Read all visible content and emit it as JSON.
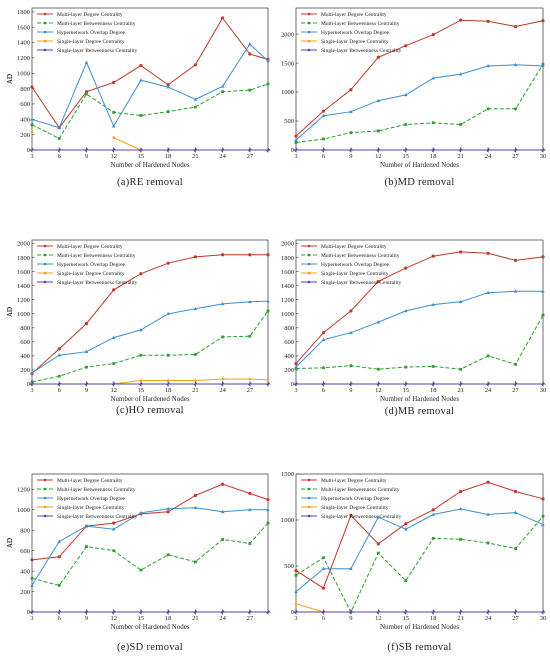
{
  "legend_names": [
    "Multi-layer Degree Centrality",
    "Multi-layer Betweenness Centrality",
    "Hypernetwork Overlap Degree",
    "Single-layer Degree Centrality",
    "Single-layer Betweenness Centrality"
  ],
  "series_colors": [
    "#c0392b",
    "#2ca02c",
    "#3a8fd1",
    "#f0a30a",
    "#5b3fb5"
  ],
  "chart_data": [
    {
      "type": "line",
      "caption": "(a)RE removal",
      "xlabel": "Number of Hardened Nodes",
      "ylabel": "AD",
      "xlim": [
        3,
        29
      ],
      "ylim": [
        0,
        1850
      ],
      "x_ticks": [
        3,
        6,
        9,
        12,
        15,
        18,
        21,
        24,
        27
      ],
      "y_ticks": [
        0,
        200,
        400,
        600,
        800,
        1000,
        1200,
        1400,
        1600,
        1800
      ],
      "x": [
        3,
        6,
        9,
        12,
        15,
        18,
        21,
        24,
        27,
        29
      ],
      "series": [
        {
          "name": "Multi-layer Degree Centrality",
          "values": [
            820,
            290,
            760,
            880,
            1100,
            850,
            1110,
            1720,
            1250,
            1180
          ]
        },
        {
          "name": "Multi-layer Betweenness Centrality",
          "values": [
            330,
            150,
            730,
            490,
            450,
            500,
            560,
            760,
            780,
            860
          ]
        },
        {
          "name": "Hypernetwork Overlap Degree",
          "values": [
            400,
            290,
            1140,
            310,
            910,
            820,
            660,
            830,
            1380,
            1160
          ]
        },
        {
          "name": "Single-layer Degree Centrality",
          "values": [
            230,
            null,
            null,
            160,
            0,
            0,
            0,
            0,
            0,
            0
          ]
        },
        {
          "name": "Single-layer Betweenness Centrality",
          "values": [
            0,
            0,
            0,
            0,
            0,
            0,
            0,
            0,
            0,
            0
          ]
        }
      ]
    },
    {
      "type": "line",
      "caption": "(b)MD removal",
      "xlabel": "Number of Hardened Nodes",
      "ylabel": "AD",
      "xlim": [
        3,
        30
      ],
      "ylim": [
        0,
        2450
      ],
      "x_ticks": [
        3,
        6,
        9,
        12,
        15,
        18,
        21,
        24,
        27,
        30
      ],
      "y_ticks": [
        0,
        500,
        1000,
        1500,
        2000
      ],
      "x": [
        3,
        6,
        9,
        12,
        15,
        18,
        21,
        24,
        27,
        30
      ],
      "series": [
        {
          "name": "Multi-layer Degree Centrality",
          "values": [
            240,
            670,
            1040,
            1600,
            1800,
            1990,
            2240,
            2220,
            2130,
            2230
          ]
        },
        {
          "name": "Multi-layer Betweenness Centrality",
          "values": [
            130,
            190,
            300,
            330,
            440,
            470,
            440,
            710,
            710,
            1480
          ]
        },
        {
          "name": "Hypernetwork Overlap Degree",
          "values": [
            170,
            590,
            660,
            850,
            950,
            1240,
            1310,
            1450,
            1470,
            1450
          ]
        },
        {
          "name": "Single-layer Degree Centrality",
          "values": [
            0,
            0,
            0,
            0,
            0,
            0,
            0,
            0,
            0,
            0
          ]
        },
        {
          "name": "Single-layer Betweenness Centrality",
          "values": [
            0,
            0,
            0,
            0,
            0,
            0,
            0,
            0,
            0,
            0
          ]
        }
      ]
    },
    {
      "type": "line",
      "caption": "(c)HO removal",
      "xlabel": "Number of Hardened Nodes",
      "ylabel": "AD",
      "xlim": [
        3,
        29
      ],
      "ylim": [
        0,
        2050
      ],
      "x_ticks": [
        3,
        6,
        9,
        12,
        15,
        18,
        21,
        24,
        27
      ],
      "y_ticks": [
        0,
        200,
        400,
        600,
        800,
        1000,
        1200,
        1400,
        1600,
        1800,
        2000
      ],
      "x": [
        3,
        6,
        9,
        12,
        15,
        18,
        21,
        24,
        27,
        29
      ],
      "series": [
        {
          "name": "Multi-layer Degree Centrality",
          "values": [
            150,
            500,
            860,
            1340,
            1570,
            1720,
            1810,
            1840,
            1840,
            1840
          ]
        },
        {
          "name": "Multi-layer Betweenness Centrality",
          "values": [
            30,
            110,
            240,
            290,
            410,
            410,
            420,
            670,
            680,
            1040
          ]
        },
        {
          "name": "Hypernetwork Overlap Degree",
          "values": [
            160,
            410,
            460,
            660,
            770,
            1000,
            1070,
            1140,
            1170,
            1180
          ]
        },
        {
          "name": "Single-layer Degree Centrality",
          "values": [
            0,
            0,
            0,
            0,
            50,
            50,
            50,
            70,
            70,
            60
          ]
        },
        {
          "name": "Single-layer Betweenness Centrality",
          "values": [
            0,
            0,
            0,
            0,
            0,
            0,
            0,
            0,
            0,
            0
          ]
        }
      ]
    },
    {
      "type": "line",
      "caption": "(d)MB removal",
      "xlabel": "Number of Hardened Nodes",
      "ylabel": "AD",
      "xlim": [
        3,
        30
      ],
      "ylim": [
        0,
        2050
      ],
      "x_ticks": [
        3,
        6,
        9,
        12,
        15,
        18,
        21,
        24,
        27,
        30
      ],
      "y_ticks": [
        0,
        200,
        400,
        600,
        800,
        1000,
        1200,
        1400,
        1600,
        1800,
        2000
      ],
      "x": [
        3,
        6,
        9,
        12,
        15,
        18,
        21,
        24,
        27,
        30
      ],
      "series": [
        {
          "name": "Multi-layer Degree Centrality",
          "values": [
            290,
            730,
            1040,
            1460,
            1650,
            1820,
            1880,
            1860,
            1760,
            1810
          ]
        },
        {
          "name": "Multi-layer Betweenness Centrality",
          "values": [
            220,
            230,
            260,
            210,
            240,
            250,
            210,
            400,
            280,
            980
          ]
        },
        {
          "name": "Hypernetwork Overlap Degree",
          "values": [
            240,
            630,
            730,
            880,
            1040,
            1130,
            1170,
            1300,
            1320,
            1320
          ]
        },
        {
          "name": "Single-layer Degree Centrality",
          "values": [
            0,
            0,
            0,
            0,
            0,
            0,
            0,
            0,
            0,
            0
          ]
        },
        {
          "name": "Single-layer Betweenness Centrality",
          "values": [
            0,
            0,
            0,
            0,
            0,
            0,
            0,
            0,
            0,
            0
          ]
        }
      ]
    },
    {
      "type": "line",
      "caption": "(e)SD removal",
      "xlabel": "Number of Hardened Nodes",
      "ylabel": "AD",
      "xlim": [
        3,
        29
      ],
      "ylim": [
        0,
        1350
      ],
      "x_ticks": [
        3,
        6,
        9,
        12,
        15,
        18,
        21,
        24,
        27
      ],
      "y_ticks": [
        0,
        200,
        400,
        600,
        800,
        1000,
        1200
      ],
      "x": [
        3,
        6,
        9,
        12,
        15,
        18,
        21,
        24,
        27,
        29
      ],
      "series": [
        {
          "name": "Multi-layer Degree Centrality",
          "values": [
            510,
            540,
            840,
            870,
            960,
            980,
            1140,
            1250,
            1160,
            1100
          ]
        },
        {
          "name": "Multi-layer Betweenness Centrality",
          "values": [
            330,
            260,
            640,
            600,
            410,
            560,
            490,
            710,
            670,
            870
          ]
        },
        {
          "name": "Hypernetwork Overlap Degree",
          "values": [
            260,
            690,
            840,
            810,
            970,
            1010,
            1020,
            980,
            1000,
            1000
          ]
        },
        {
          "name": "Single-layer Degree Centrality",
          "values": [
            0,
            0,
            0,
            0,
            0,
            0,
            0,
            0,
            0,
            0
          ]
        },
        {
          "name": "Single-layer Betweenness Centrality",
          "values": [
            0,
            0,
            0,
            0,
            0,
            0,
            0,
            0,
            0,
            0
          ]
        }
      ]
    },
    {
      "type": "line",
      "caption": "(f)SB removal",
      "xlabel": "Number of Hardened Nodes",
      "ylabel": "AD",
      "xlim": [
        3,
        30
      ],
      "ylim": [
        0,
        1500
      ],
      "x_ticks": [
        3,
        6,
        9,
        12,
        15,
        18,
        21,
        24,
        27,
        30
      ],
      "y_ticks": [
        0,
        500,
        1000,
        1500
      ],
      "x": [
        3,
        6,
        9,
        12,
        15,
        18,
        21,
        24,
        27,
        30
      ],
      "series": [
        {
          "name": "Multi-layer Degree Centrality",
          "values": [
            450,
            260,
            1050,
            740,
            960,
            1110,
            1310,
            1410,
            1310,
            1230
          ]
        },
        {
          "name": "Multi-layer Betweenness Centrality",
          "values": [
            400,
            590,
            0,
            640,
            340,
            800,
            790,
            750,
            690,
            1040
          ]
        },
        {
          "name": "Hypernetwork Overlap Degree",
          "values": [
            220,
            470,
            470,
            1030,
            900,
            1060,
            1120,
            1060,
            1080,
            950
          ]
        },
        {
          "name": "Single-layer Degree Centrality",
          "values": [
            90,
            0,
            null,
            null,
            null,
            null,
            null,
            null,
            null,
            null
          ]
        },
        {
          "name": "Single-layer Betweenness Centrality",
          "values": [
            0,
            0,
            0,
            0,
            0,
            0,
            0,
            0,
            0,
            0
          ]
        }
      ]
    }
  ]
}
